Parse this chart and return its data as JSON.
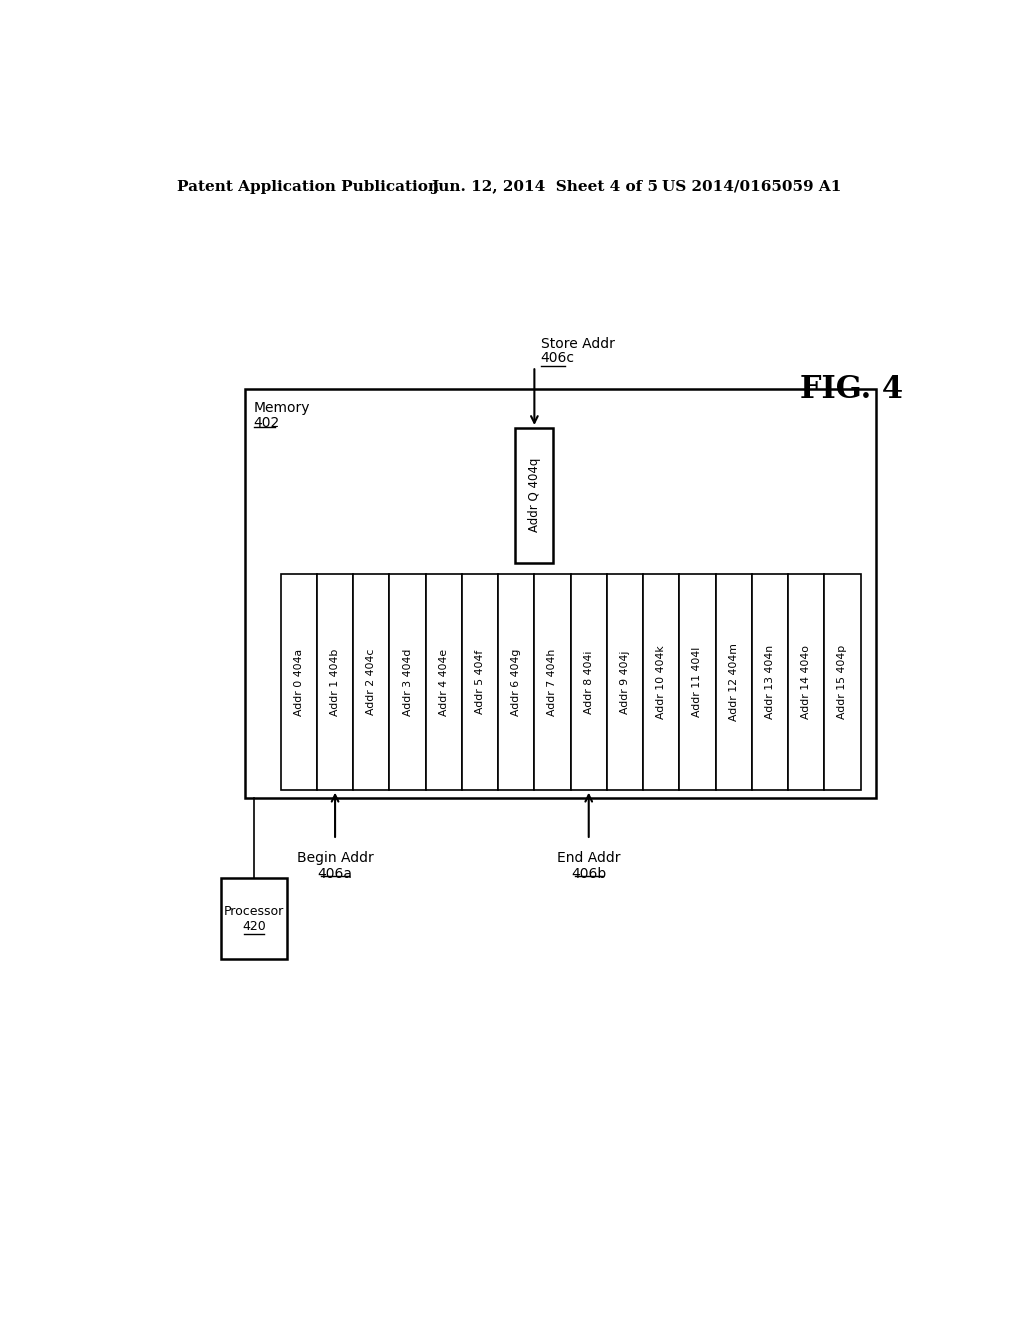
{
  "header_left": "Patent Application Publication",
  "header_center": "Jun. 12, 2014  Sheet 4 of 5",
  "header_right": "US 2014/0165059 A1",
  "fig_label": "FIG. 4",
  "memory_label": "Memory",
  "memory_num": "402",
  "processor_label": "Processor",
  "processor_num": "420",
  "addr_q_label": "Addr Q 404q",
  "store_addr_label": "Store Addr",
  "store_addr_num": "406c",
  "begin_addr_label": "Begin Addr",
  "begin_addr_num": "406a",
  "end_addr_label": "End Addr",
  "end_addr_num": "406b",
  "addr_cells": [
    "Addr 0 404a",
    "Addr 1 404b",
    "Addr 2 404c",
    "Addr 3 404d",
    "Addr 4 404e",
    "Addr 5 404f",
    "Addr 6 404g",
    "Addr 7 404h",
    "Addr 8 404i",
    "Addr 9 404j",
    "Addr 10 404k",
    "Addr 11 404l",
    "Addr 12 404m",
    "Addr 13 404n",
    "Addr 14 404o",
    "Addr 15 404p"
  ],
  "bg_color": "#ffffff",
  "box_color": "#000000",
  "text_color": "#000000"
}
